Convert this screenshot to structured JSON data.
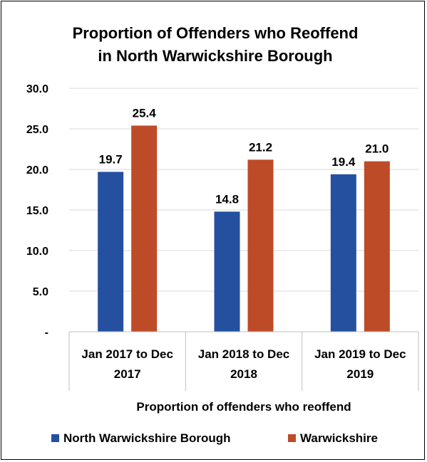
{
  "chart_data": {
    "type": "bar",
    "title_lines": [
      "Proportion of Offenders who Reoffend",
      "in North Warwickshire Borough"
    ],
    "categories": [
      [
        "Jan 2017 to Dec",
        "2017"
      ],
      [
        "Jan 2018 to Dec",
        "2018"
      ],
      [
        "Jan 2019 to Dec",
        "2019"
      ]
    ],
    "series": [
      {
        "name": "North Warwickshire Borough",
        "color": "#2550A0",
        "values": [
          19.7,
          14.8,
          19.4
        ],
        "labels": [
          "19.7",
          "14.8",
          "19.4"
        ]
      },
      {
        "name": "Warwickshire",
        "color": "#BE4B28",
        "values": [
          25.4,
          21.2,
          21.0
        ],
        "labels": [
          "25.4",
          "21.2",
          "21.0"
        ]
      }
    ],
    "xlabel": "Proportion of offenders who reoffend",
    "ylabel": "",
    "ylim": [
      0,
      30
    ],
    "yticks": [
      {
        "value": 0,
        "label": "-"
      },
      {
        "value": 5,
        "label": "5.0"
      },
      {
        "value": 10,
        "label": "10.0"
      },
      {
        "value": 15,
        "label": "15.0"
      },
      {
        "value": 20,
        "label": "20.0"
      },
      {
        "value": 25,
        "label": "25.0"
      },
      {
        "value": 30,
        "label": "30.0"
      }
    ],
    "grid": true,
    "legend_position": "bottom",
    "colors": {
      "gridline": "#D9D9D9",
      "axis": "#BFBFBF"
    }
  }
}
